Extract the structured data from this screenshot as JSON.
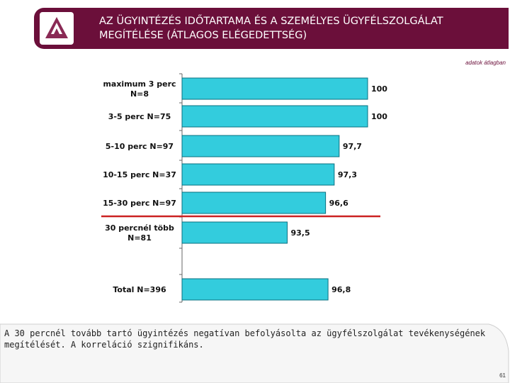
{
  "header": {
    "title_line1": "AZ ÜGYINTÉZÉS IDŐTARTAMA ÉS A SZEMÉLYES ÜGYFÉLSZOLGÁLAT",
    "title_line2": "MEGÍTÉLÉSE (ÁTLAGOS ELÉGEDETTSÉG)",
    "note": "adatok átlagban"
  },
  "colors": {
    "brand": "#6b0f3a",
    "bar_fill": "#33ccdd",
    "bar_stroke": "#0a7080",
    "divider_line": "#cc2222"
  },
  "chart_data": {
    "type": "bar",
    "orientation": "horizontal",
    "categories": [
      [
        "maximum 3 perc",
        "N=8"
      ],
      [
        "3-5 perc N=75"
      ],
      [
        "5-10 perc N=97"
      ],
      [
        "10-15 perc N=37"
      ],
      [
        "15-30 perc N=97"
      ],
      [
        "30 percnél több",
        "N=81"
      ],
      [
        "Total N=396"
      ]
    ],
    "values": [
      100,
      100,
      97.7,
      97.3,
      96.6,
      93.5,
      96.8
    ],
    "value_labels": [
      "100",
      "100",
      "97,7",
      "97,3",
      "96,6",
      "93,5",
      "96,8"
    ],
    "xlim": [
      85,
      100
    ],
    "grid": false,
    "legend": "none"
  },
  "footer": {
    "text": "A 30 percnél tovább tartó ügyintézés negatívan befolyásolta az ügyfélszolgálat tevékenységének megítélését. A korreláció szignifikáns.",
    "page_number": "61"
  }
}
